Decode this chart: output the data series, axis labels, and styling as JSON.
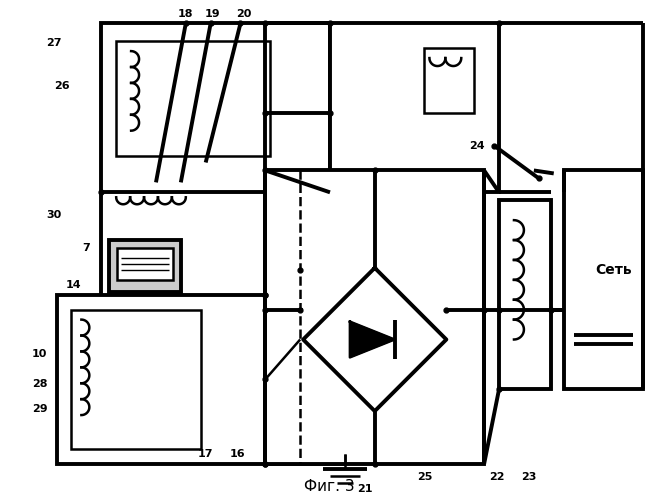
{
  "title": "Фиг. 3",
  "bg": "#ffffff",
  "lc": "#000000",
  "lw": 1.8,
  "tlw": 2.8
}
